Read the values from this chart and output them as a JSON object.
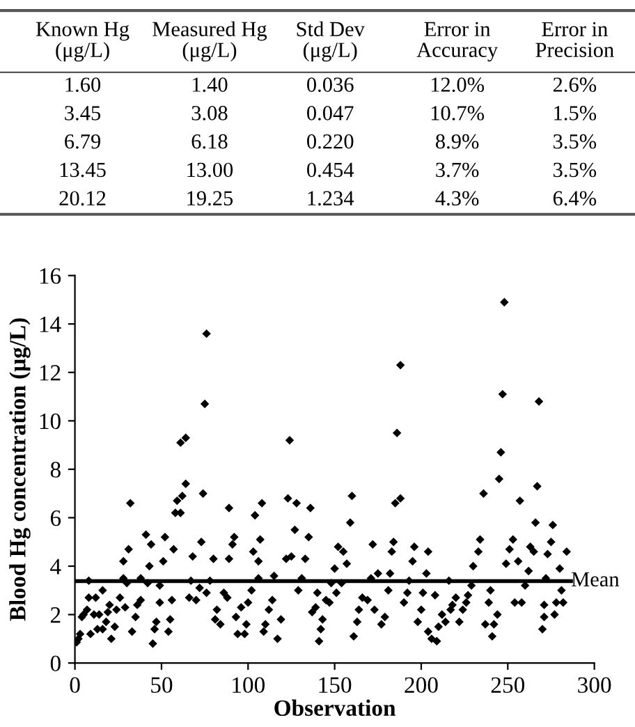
{
  "chart_data": [
    {
      "type": "other",
      "categories": [
        "Known Hg\n(μg/L)",
        "Measured Hg\n(μg/L)",
        "Std Dev\n(μg/L)",
        "Error in\nAccuracy",
        "Error in\nPrecision"
      ],
      "cell_labels": [
        [
          "1.60",
          "1.40",
          "0.036",
          "12.0%",
          "2.6%"
        ],
        [
          "3.45",
          "3.08",
          "0.047",
          "10.7%",
          "1.5%"
        ],
        [
          "6.79",
          "6.18",
          "0.220",
          "8.9%",
          "3.5%"
        ],
        [
          "13.45",
          "13.00",
          "0.454",
          "3.7%",
          "3.5%"
        ],
        [
          "20.12",
          "19.25",
          "1.234",
          "4.3%",
          "6.4%"
        ]
      ]
    },
    {
      "type": "scatter",
      "xlabel": "Observation",
      "ylabel": "Blood Hg concentration (μg/L)",
      "xlim": [
        0,
        300
      ],
      "xticks": [
        0,
        50,
        100,
        150,
        200,
        250,
        300
      ],
      "ylim": [
        0,
        16
      ],
      "yticks": [
        0,
        2,
        4,
        6,
        8,
        10,
        12,
        14,
        16
      ],
      "marker": "diamond",
      "grid": false,
      "legend": false,
      "ref_lines": [
        {
          "axis": "y",
          "value": 3.38,
          "label": "Mean",
          "color": "#000000",
          "line_style": "solid"
        }
      ],
      "series": [
        {
          "color": "#000000",
          "x": [
            1,
            2,
            3,
            4,
            5,
            7,
            8,
            8,
            9,
            11,
            12,
            13,
            14,
            16,
            16,
            18,
            19,
            20,
            21,
            23,
            24,
            26,
            28,
            28,
            29,
            30,
            31,
            32,
            33,
            35,
            36,
            38,
            38,
            41,
            42,
            43,
            44,
            45,
            46,
            47,
            49,
            49,
            51,
            52,
            54,
            55,
            56,
            57,
            58,
            59,
            61,
            61,
            62,
            64,
            64,
            66,
            67,
            68,
            70,
            72,
            73,
            74,
            75,
            76,
            76,
            78,
            80,
            81,
            82,
            84,
            86,
            88,
            89,
            89,
            91,
            92,
            93,
            94,
            96,
            98,
            99,
            100,
            102,
            103,
            104,
            106,
            107,
            108,
            106,
            109,
            110,
            112,
            114,
            115,
            117,
            119,
            122,
            123,
            124,
            125,
            127,
            128,
            129,
            131,
            133,
            135,
            136,
            137,
            139,
            140,
            141,
            142,
            143,
            145,
            147,
            148,
            150,
            151,
            152,
            154,
            155,
            157,
            159,
            160,
            161,
            163,
            164,
            166,
            169,
            171,
            172,
            173,
            175,
            177,
            179,
            181,
            182,
            183,
            184,
            185,
            186,
            188,
            188,
            190,
            192,
            193,
            195,
            196,
            198,
            200,
            201,
            203,
            204,
            204,
            206,
            208,
            209,
            210,
            212,
            214,
            216,
            217,
            218,
            220,
            222,
            224,
            226,
            227,
            229,
            230,
            233,
            234,
            236,
            237,
            239,
            240,
            241,
            242,
            244,
            245,
            246,
            247,
            248,
            249,
            251,
            253,
            254,
            256,
            257,
            258,
            260,
            262,
            263,
            265,
            266,
            267,
            268,
            270,
            271,
            271,
            272,
            273,
            275,
            276,
            277,
            278,
            280,
            281,
            282,
            284
          ],
          "values": [
            0.86,
            1.0,
            1.2,
            1.9,
            2.0,
            2.2,
            2.7,
            3.4,
            1.2,
            2.0,
            2.7,
            1.4,
            2.0,
            3.0,
            1.4,
            1.7,
            2.1,
            2.4,
            1.0,
            1.5,
            2.2,
            2.7,
            3.5,
            4.2,
            2.3,
            3.3,
            4.7,
            6.6,
            1.3,
            1.9,
            2.4,
            3.5,
            2.6,
            5.3,
            3.3,
            4.0,
            4.9,
            0.8,
            1.4,
            1.7,
            3.2,
            2.5,
            4.2,
            5.2,
            1.3,
            1.8,
            2.6,
            4.7,
            6.2,
            6.7,
            9.1,
            6.2,
            6.9,
            7.4,
            9.3,
            2.7,
            3.4,
            4.4,
            2.6,
            3.1,
            5.0,
            7.0,
            10.7,
            13.6,
            2.9,
            3.4,
            4.3,
            1.8,
            2.2,
            1.6,
            2.9,
            2.7,
            6.4,
            4.3,
            4.9,
            5.2,
            1.9,
            1.2,
            2.3,
            1.2,
            1.6,
            2.5,
            3.0,
            4.6,
            6.1,
            4.2,
            5.1,
            6.6,
            3.5,
            1.3,
            1.6,
            2.2,
            2.6,
            3.6,
            1.0,
            1.8,
            4.3,
            6.8,
            9.2,
            4.4,
            5.5,
            6.6,
            3.0,
            3.5,
            4.3,
            5.2,
            6.4,
            2.1,
            2.3,
            2.9,
            0.9,
            1.4,
            1.8,
            2.6,
            2.5,
            3.3,
            3.9,
            2.9,
            4.8,
            3.3,
            4.6,
            4.1,
            5.8,
            6.9,
            1.1,
            1.7,
            2.2,
            2.7,
            2.6,
            3.5,
            4.9,
            2.2,
            3.7,
            1.6,
            1.9,
            3.0,
            3.7,
            4.6,
            5.0,
            6.6,
            9.5,
            12.3,
            6.8,
            2.5,
            2.9,
            3.4,
            4.2,
            4.8,
            1.7,
            2.2,
            2.9,
            3.7,
            4.6,
            1.3,
            1.0,
            2.8,
            0.9,
            1.5,
            2.0,
            1.7,
            3.4,
            2.2,
            2.4,
            2.7,
            1.7,
            2.2,
            2.5,
            2.8,
            3.2,
            4.0,
            4.6,
            5.1,
            7.0,
            1.6,
            2.5,
            3.0,
            1.1,
            1.6,
            2.0,
            7.6,
            8.7,
            11.1,
            14.9,
            4.1,
            4.7,
            5.1,
            2.5,
            4.2,
            6.7,
            2.5,
            3.2,
            3.8,
            4.8,
            4.6,
            5.8,
            7.3,
            10.8,
            1.4,
            1.9,
            2.4,
            3.5,
            4.5,
            5.0,
            5.7,
            2.0,
            2.5,
            3.9,
            3.0,
            2.5,
            4.6
          ]
        }
      ]
    }
  ]
}
